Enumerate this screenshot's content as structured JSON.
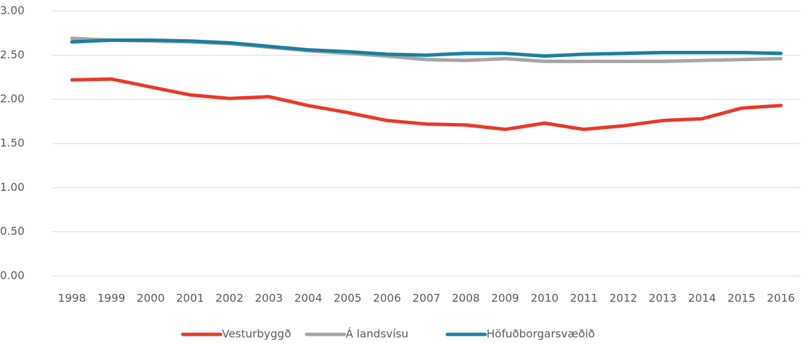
{
  "chart_data": {
    "type": "line",
    "categories": [
      "1998",
      "1999",
      "2000",
      "2001",
      "2002",
      "2003",
      "2004",
      "2005",
      "2006",
      "2007",
      "2008",
      "2009",
      "2010",
      "2011",
      "2012",
      "2013",
      "2014",
      "2015",
      "2016"
    ],
    "series": [
      {
        "name": "Vesturbyggð",
        "color": "#e8392a",
        "values": [
          2.22,
          2.23,
          2.14,
          2.05,
          2.01,
          2.03,
          1.93,
          1.85,
          1.76,
          1.72,
          1.71,
          1.66,
          1.73,
          1.66,
          1.7,
          1.76,
          1.78,
          1.9,
          1.93
        ]
      },
      {
        "name": "Á landsvísu",
        "color": "#a5a5a7",
        "values": [
          2.69,
          2.67,
          2.66,
          2.65,
          2.63,
          2.59,
          2.55,
          2.52,
          2.49,
          2.45,
          2.44,
          2.46,
          2.43,
          2.43,
          2.43,
          2.43,
          2.44,
          2.45,
          2.46
        ]
      },
      {
        "name": "Höfuðborgarsvæðið",
        "color": "#1a7fa0",
        "values": [
          2.65,
          2.67,
          2.67,
          2.66,
          2.64,
          2.6,
          2.56,
          2.54,
          2.51,
          2.5,
          2.52,
          2.52,
          2.49,
          2.51,
          2.52,
          2.53,
          2.53,
          2.53,
          2.52
        ]
      }
    ],
    "ylim": [
      0,
      3
    ],
    "yticks": [
      {
        "value": 0,
        "label": "0.00"
      },
      {
        "value": 0.5,
        "label": "0.50"
      },
      {
        "value": 1,
        "label": "1.00"
      },
      {
        "value": 1.5,
        "label": "1.50"
      },
      {
        "value": 2,
        "label": "2.00"
      },
      {
        "value": 2.5,
        "label": "2.50"
      },
      {
        "value": 3,
        "label": "3.00"
      }
    ],
    "grid": true,
    "legend": "bottom"
  }
}
